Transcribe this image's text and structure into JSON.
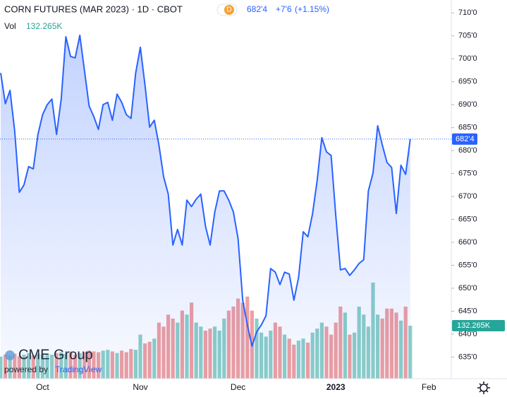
{
  "chart_data": {
    "type": "area",
    "title": "CORN FUTURES (MAR 2023) · 1D · CBOT",
    "badge": "D",
    "quote": {
      "last": {
        "value": 682.5,
        "label": "682'4"
      },
      "change": {
        "value": 7.75,
        "label": "+7'6"
      },
      "change_percent": {
        "value": 1.15,
        "label": "(+1.15%)"
      }
    },
    "color": "#2962ff",
    "categories": [
      null,
      null,
      null,
      null,
      null,
      null,
      null,
      null,
      null,
      "Oct",
      null,
      null,
      null,
      null,
      null,
      null,
      null,
      null,
      null,
      null,
      null,
      null,
      null,
      null,
      null,
      null,
      null,
      null,
      null,
      null,
      "Nov",
      null,
      null,
      null,
      null,
      null,
      null,
      null,
      null,
      null,
      null,
      null,
      null,
      null,
      null,
      null,
      null,
      null,
      null,
      null,
      null,
      "Dec",
      null,
      null,
      null,
      null,
      null,
      null,
      null,
      null,
      null,
      null,
      null,
      null,
      null,
      null,
      null,
      null,
      null,
      null,
      null,
      null,
      "2023",
      null,
      null,
      null,
      null,
      null,
      null,
      null,
      null,
      null,
      null,
      null,
      null,
      null,
      null,
      null,
      null,
      null,
      null,
      null,
      "Feb"
    ],
    "values": [
      696.9,
      690.2,
      693.1,
      684.3,
      670.9,
      672.5,
      676.5,
      676,
      683.5,
      687.8,
      690,
      691.2,
      683.5,
      691.2,
      704.8,
      700.5,
      700.2,
      705.1,
      697.4,
      689.7,
      687.4,
      684.6,
      690,
      690.5,
      686.6,
      692.3,
      690.5,
      687.8,
      687,
      696.9,
      702.5,
      694.3,
      685.1,
      686.6,
      681.2,
      674.3,
      670.5,
      659.4,
      662.8,
      659.4,
      669.2,
      667.8,
      669.4,
      670.5,
      663.5,
      659.4,
      666.6,
      671.2,
      671.2,
      669.2,
      666.6,
      660.8,
      647.4,
      642,
      637.4,
      640.5,
      642,
      644,
      654.3,
      653.5,
      650.8,
      653.5,
      653.1,
      647.4,
      652.3,
      662.3,
      661.2,
      666.2,
      673.5,
      682.8,
      679.7,
      678.9,
      665.8,
      654,
      654.3,
      652.8,
      654,
      655.4,
      656.2,
      671.2,
      675.1,
      685.4,
      681.2,
      677.4,
      676.3,
      666.3,
      676.8,
      674.8,
      682.5,
      null,
      null,
      null,
      null
    ],
    "ylim": [
      630.3,
      712.8
    ],
    "yticks": [
      {
        "value": 710,
        "label": "710'0"
      },
      {
        "value": 705,
        "label": "705'0"
      },
      {
        "value": 700,
        "label": "700'0"
      },
      {
        "value": 695,
        "label": "695'0"
      },
      {
        "value": 690,
        "label": "690'0"
      },
      {
        "value": 685,
        "label": "685'0"
      },
      {
        "value": 680,
        "label": "680'0"
      },
      {
        "value": 675,
        "label": "675'0"
      },
      {
        "value": 670,
        "label": "670'0"
      },
      {
        "value": 665,
        "label": "665'0"
      },
      {
        "value": 660,
        "label": "660'0"
      },
      {
        "value": 655,
        "label": "655'0"
      },
      {
        "value": 650,
        "label": "650'0"
      },
      {
        "value": 645,
        "label": "645'0"
      },
      {
        "value": 640,
        "label": "640'0"
      },
      {
        "value": 635,
        "label": "635'0"
      }
    ],
    "volume": {
      "name": "Vol",
      "up_color": "#8ccfc7",
      "down_color": "#ef9fa0",
      "values": [
        55,
        60,
        58,
        62,
        56,
        60,
        64,
        58,
        62,
        60,
        62,
        60,
        64,
        66,
        62,
        68,
        60,
        64,
        66,
        70,
        68,
        66,
        70,
        72,
        68,
        64,
        70,
        66,
        74,
        72,
        110,
        88,
        92,
        100,
        140,
        130,
        160,
        150,
        140,
        170,
        160,
        190,
        140,
        130,
        120,
        125,
        130,
        120,
        150,
        170,
        180,
        200,
        190,
        205,
        170,
        150,
        115,
        105,
        120,
        140,
        130,
        110,
        100,
        85,
        95,
        100,
        90,
        115,
        125,
        140,
        130,
        110,
        140,
        180,
        165,
        110,
        115,
        180,
        160,
        130,
        240,
        160,
        150,
        175,
        175,
        165,
        145,
        180,
        132.265
      ],
      "value_labels": [
        null,
        null,
        null,
        null,
        null,
        null,
        null,
        null,
        null,
        null,
        null,
        null,
        null,
        null,
        null,
        null,
        null,
        null,
        null,
        null,
        null,
        null,
        null,
        null,
        null,
        null,
        null,
        null,
        null,
        null,
        null,
        null,
        null,
        null,
        null,
        null,
        null,
        null,
        null,
        null,
        null,
        null,
        null,
        null,
        null,
        null,
        null,
        null,
        null,
        null,
        null,
        null,
        null,
        null,
        null,
        null,
        null,
        null,
        null,
        null,
        null,
        null,
        null,
        null,
        null,
        null,
        null,
        null,
        null,
        null,
        null,
        null,
        null,
        null,
        null,
        null,
        null,
        null,
        null,
        null,
        null,
        null,
        null,
        null,
        null,
        null,
        null,
        null,
        "132.265K"
      ]
    },
    "watermark": {
      "brand": "CME Group",
      "powered": "powered by",
      "platform": "TradingView"
    }
  }
}
